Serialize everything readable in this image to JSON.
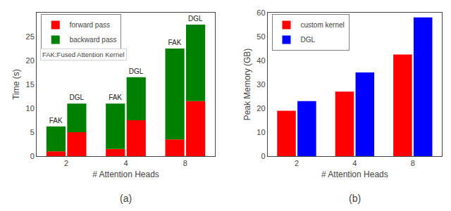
{
  "chart_data": [
    {
      "type": "bar",
      "stacked": true,
      "subtitle": "(a)",
      "xlabel": "# Attention Heads",
      "ylabel": "Time (s)",
      "categories": [
        "2",
        "4",
        "8"
      ],
      "groups": [
        {
          "label": "FAK",
          "series": [
            {
              "name": "forward pass",
              "color": "#ff0000",
              "values": [
                1.0,
                1.5,
                3.5
              ]
            },
            {
              "name": "backward pass",
              "color": "#008000",
              "values": [
                5.2,
                9.5,
                19.0
              ]
            }
          ]
        },
        {
          "label": "DGL",
          "series": [
            {
              "name": "forward pass",
              "color": "#ff0000",
              "values": [
                5.0,
                7.5,
                11.5
              ]
            },
            {
              "name": "backward pass",
              "color": "#008000",
              "values": [
                6.0,
                9.0,
                16.0
              ]
            }
          ]
        }
      ],
      "ylim": [
        0,
        30
      ],
      "yticks": [
        0,
        5,
        10,
        15,
        20,
        25
      ],
      "legend": "upper left",
      "annotation": "FAK:Fused Attention Kernel",
      "grid": false
    },
    {
      "type": "bar",
      "stacked": false,
      "subtitle": "(b)",
      "xlabel": "# Attention Heads",
      "ylabel": "Peak Memory (GB)",
      "categories": [
        "2",
        "4",
        "8"
      ],
      "series": [
        {
          "name": "custom kernel",
          "color": "#ff0000",
          "values": [
            19.0,
            27.0,
            42.5
          ]
        },
        {
          "name": "DGL",
          "color": "#0000ff",
          "values": [
            23.0,
            35.0,
            58.0
          ]
        }
      ],
      "ylim": [
        0,
        60
      ],
      "yticks": [
        0,
        10,
        20,
        30,
        40,
        50,
        60
      ],
      "legend": "upper left",
      "grid": false
    }
  ]
}
